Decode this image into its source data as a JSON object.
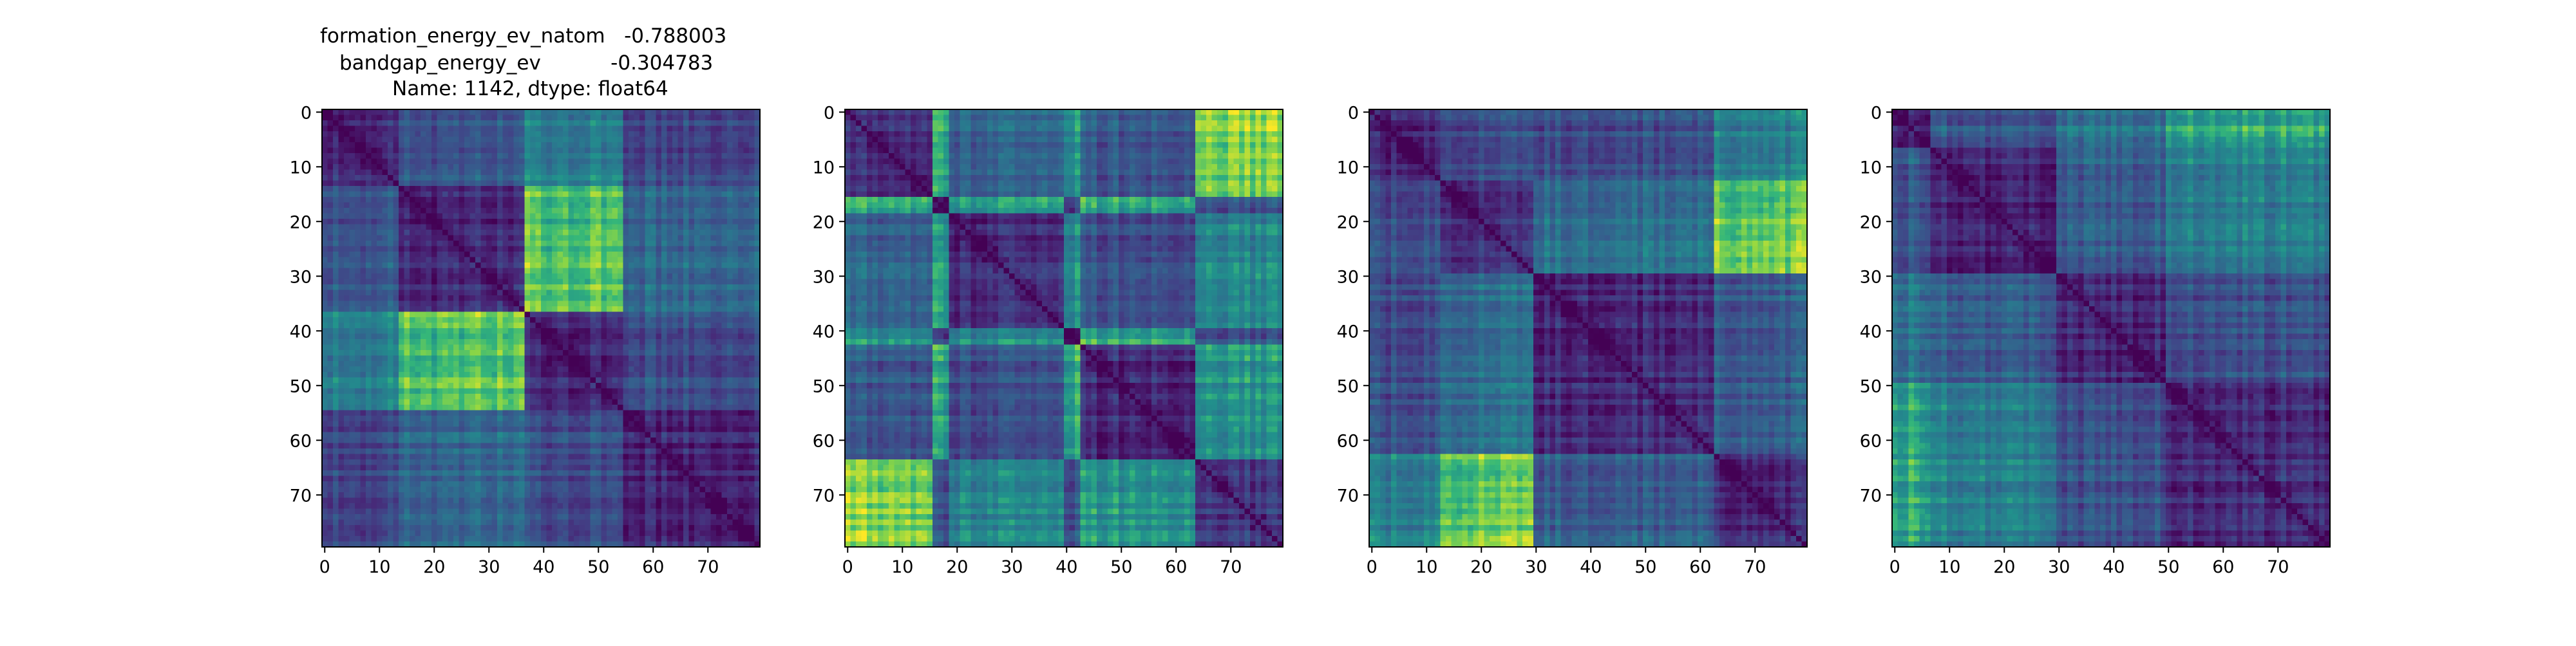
{
  "chart_data": [
    {
      "type": "heatmap",
      "title_lines": [
        "formation_energy_ev_natom   -0.788003",
        "bandgap_energy_ev           -0.304783",
        "Name: 1142, dtype: float64"
      ],
      "matrix_size": 80,
      "xlim": [
        0,
        80
      ],
      "ylim": [
        80,
        0
      ],
      "xticks": [
        0,
        10,
        20,
        30,
        40,
        50,
        60,
        70
      ],
      "yticks": [
        0,
        10,
        20,
        30,
        40,
        50,
        60,
        70
      ],
      "xlabel": "",
      "ylabel": "",
      "colormap": "viridis",
      "grid": false,
      "block_boundaries": [
        0,
        14,
        37,
        55,
        80
      ],
      "block_means": [
        [
          0.18,
          0.35,
          0.55,
          0.28
        ],
        [
          0.35,
          0.15,
          0.8,
          0.42
        ],
        [
          0.55,
          0.8,
          0.16,
          0.3
        ],
        [
          0.28,
          0.42,
          0.3,
          0.14
        ]
      ]
    },
    {
      "type": "heatmap",
      "title_lines": [],
      "matrix_size": 80,
      "xlim": [
        0,
        80
      ],
      "ylim": [
        80,
        0
      ],
      "xticks": [
        0,
        10,
        20,
        30,
        40,
        50,
        60,
        70
      ],
      "yticks": [
        0,
        10,
        20,
        30,
        40,
        50,
        60,
        70
      ],
      "xlabel": "",
      "ylabel": "",
      "colormap": "viridis",
      "grid": false,
      "block_boundaries": [
        0,
        16,
        19,
        40,
        43,
        64,
        80
      ],
      "block_means": [
        [
          0.18,
          0.72,
          0.4,
          0.62,
          0.35,
          0.85
        ],
        [
          0.72,
          0.1,
          0.65,
          0.25,
          0.7,
          0.3
        ],
        [
          0.4,
          0.65,
          0.16,
          0.58,
          0.3,
          0.55
        ],
        [
          0.62,
          0.25,
          0.58,
          0.1,
          0.7,
          0.3
        ],
        [
          0.35,
          0.7,
          0.3,
          0.7,
          0.16,
          0.62
        ],
        [
          0.85,
          0.3,
          0.55,
          0.3,
          0.62,
          0.18
        ]
      ]
    },
    {
      "type": "heatmap",
      "title_lines": [],
      "matrix_size": 80,
      "xlim": [
        0,
        80
      ],
      "ylim": [
        80,
        0
      ],
      "xticks": [
        0,
        10,
        20,
        30,
        40,
        50,
        60,
        70
      ],
      "yticks": [
        0,
        10,
        20,
        30,
        40,
        50,
        60,
        70
      ],
      "xlabel": "",
      "ylabel": "",
      "colormap": "viridis",
      "grid": false,
      "block_boundaries": [
        0,
        13,
        30,
        63,
        80
      ],
      "block_means": [
        [
          0.14,
          0.28,
          0.3,
          0.55
        ],
        [
          0.28,
          0.16,
          0.45,
          0.82
        ],
        [
          0.3,
          0.45,
          0.16,
          0.38
        ],
        [
          0.55,
          0.82,
          0.38,
          0.18
        ]
      ]
    },
    {
      "type": "heatmap",
      "title_lines": [],
      "matrix_size": 80,
      "xlim": [
        0,
        80
      ],
      "ylim": [
        80,
        0
      ],
      "xticks": [
        0,
        10,
        20,
        30,
        40,
        50,
        60,
        70
      ],
      "yticks": [
        0,
        10,
        20,
        30,
        40,
        50,
        60,
        70
      ],
      "xlabel": "",
      "ylabel": "",
      "colormap": "viridis",
      "grid": false,
      "block_boundaries": [
        0,
        7,
        30,
        50,
        80
      ],
      "block_means": [
        [
          0.15,
          0.35,
          0.48,
          0.7
        ],
        [
          0.35,
          0.15,
          0.38,
          0.55
        ],
        [
          0.48,
          0.38,
          0.15,
          0.32
        ],
        [
          0.7,
          0.55,
          0.32,
          0.18
        ]
      ]
    }
  ]
}
